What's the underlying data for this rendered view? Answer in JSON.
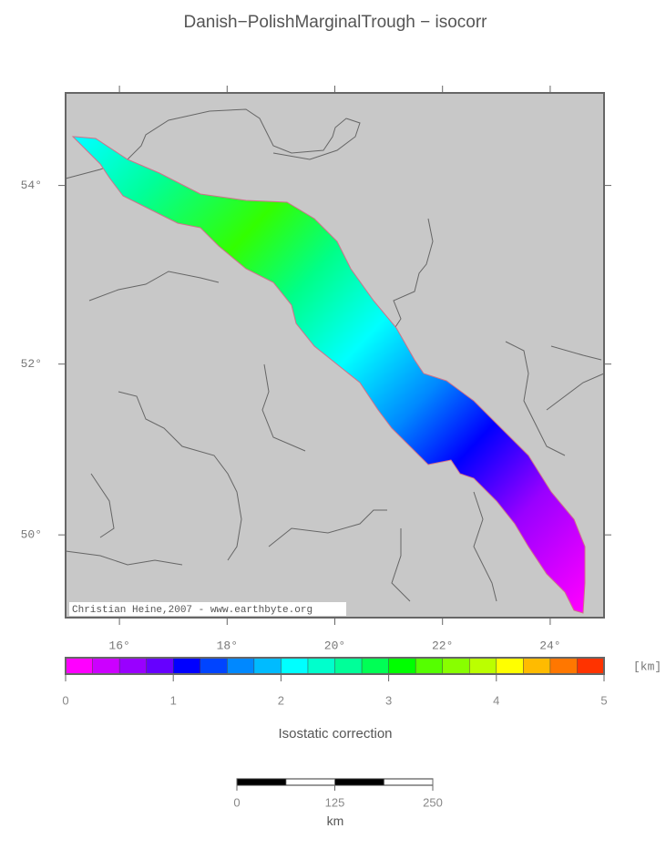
{
  "title": "Danish−PolishMarginalTrough − isocorr",
  "map": {
    "lon_lim": [
      15,
      25
    ],
    "lat_lim": [
      49,
      55
    ],
    "lon_ticks": [
      {
        "value": 16,
        "label": "16°"
      },
      {
        "value": 18,
        "label": "18°"
      },
      {
        "value": 20,
        "label": "20°"
      },
      {
        "value": 22,
        "label": "22°"
      },
      {
        "value": 24,
        "label": "24°"
      }
    ],
    "lat_ticks": [
      {
        "value": 50,
        "label": "50°"
      },
      {
        "value": 52,
        "label": "52°"
      },
      {
        "value": 54,
        "label": "54°"
      }
    ],
    "credit": "Christian Heine,2007 - www.earthbyte.org"
  },
  "colorbar": {
    "range": [
      0,
      5
    ],
    "ticks": [
      0,
      1,
      2,
      3,
      4,
      5
    ],
    "colors": [
      "#ff00ff",
      "#cc00ff",
      "#9900ff",
      "#6600ff",
      "#0000ff",
      "#0044ff",
      "#0088ff",
      "#00bbff",
      "#00ffff",
      "#00ffcc",
      "#00ff99",
      "#00ff55",
      "#00ff00",
      "#55ff00",
      "#88ff00",
      "#bbff00",
      "#ffff00",
      "#ffbb00",
      "#ff7700",
      "#ff3300"
    ],
    "unit": "[km]",
    "label": "Isostatic correction"
  },
  "scalebar": {
    "ticks": [
      0,
      125,
      250
    ],
    "unit": "km"
  }
}
